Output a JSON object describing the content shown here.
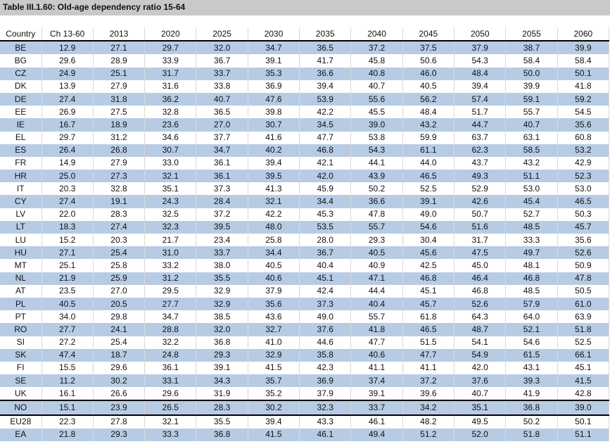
{
  "title": "Table III.1.60: Old-age dependency ratio 15-64",
  "columns": [
    "Country",
    "Ch 13-60",
    "2013",
    "2020",
    "2025",
    "2030",
    "2035",
    "2040",
    "2045",
    "2050",
    "2055",
    "2060"
  ],
  "rows": [
    [
      "BE",
      "12.9",
      "27.1",
      "29.7",
      "32.0",
      "34.7",
      "36.5",
      "37.2",
      "37.5",
      "37.9",
      "38.7",
      "39.9"
    ],
    [
      "BG",
      "29.6",
      "28.9",
      "33.9",
      "36.7",
      "39.1",
      "41.7",
      "45.8",
      "50.6",
      "54.3",
      "58.4",
      "58.4"
    ],
    [
      "CZ",
      "24.9",
      "25.1",
      "31.7",
      "33.7",
      "35.3",
      "36.6",
      "40.8",
      "46.0",
      "48.4",
      "50.0",
      "50.1"
    ],
    [
      "DK",
      "13.9",
      "27.9",
      "31.6",
      "33.8",
      "36.9",
      "39.4",
      "40.7",
      "40.5",
      "39.4",
      "39.9",
      "41.8"
    ],
    [
      "DE",
      "27.4",
      "31.8",
      "36.2",
      "40.7",
      "47.6",
      "53.9",
      "55.6",
      "56.2",
      "57.4",
      "59.1",
      "59.2"
    ],
    [
      "EE",
      "26.9",
      "27.5",
      "32.8",
      "36.5",
      "39.8",
      "42.2",
      "45.5",
      "48.4",
      "51.7",
      "55.7",
      "54.5"
    ],
    [
      "IE",
      "16.7",
      "18.9",
      "23.6",
      "27.0",
      "30.7",
      "34.5",
      "39.0",
      "43.2",
      "44.7",
      "40.7",
      "35.6"
    ],
    [
      "EL",
      "29.7",
      "31.2",
      "34.6",
      "37.7",
      "41.6",
      "47.7",
      "53.8",
      "59.9",
      "63.7",
      "63.1",
      "60.8"
    ],
    [
      "ES",
      "26.4",
      "26.8",
      "30.7",
      "34.7",
      "40.2",
      "46.8",
      "54.3",
      "61.1",
      "62.3",
      "58.5",
      "53.2"
    ],
    [
      "FR",
      "14.9",
      "27.9",
      "33.0",
      "36.1",
      "39.4",
      "42.1",
      "44.1",
      "44.0",
      "43.7",
      "43.2",
      "42.9"
    ],
    [
      "HR",
      "25.0",
      "27.3",
      "32.1",
      "36.1",
      "39.5",
      "42.0",
      "43.9",
      "46.5",
      "49.3",
      "51.1",
      "52.3"
    ],
    [
      "IT",
      "20.3",
      "32.8",
      "35.1",
      "37.3",
      "41.3",
      "45.9",
      "50.2",
      "52.5",
      "52.9",
      "53.0",
      "53.0"
    ],
    [
      "CY",
      "27.4",
      "19.1",
      "24.3",
      "28.4",
      "32.1",
      "34.4",
      "36.6",
      "39.1",
      "42.6",
      "45.4",
      "46.5"
    ],
    [
      "LV",
      "22.0",
      "28.3",
      "32.5",
      "37.2",
      "42.2",
      "45.3",
      "47.8",
      "49.0",
      "50.7",
      "52.7",
      "50.3"
    ],
    [
      "LT",
      "18.3",
      "27.4",
      "32.3",
      "39.5",
      "48.0",
      "53.5",
      "55.7",
      "54.6",
      "51.6",
      "48.5",
      "45.7"
    ],
    [
      "LU",
      "15.2",
      "20.3",
      "21.7",
      "23.4",
      "25.8",
      "28.0",
      "29.3",
      "30.4",
      "31.7",
      "33.3",
      "35.6"
    ],
    [
      "HU",
      "27.1",
      "25.4",
      "31.0",
      "33.7",
      "34.4",
      "36.7",
      "40.5",
      "45.6",
      "47.5",
      "49.7",
      "52.6"
    ],
    [
      "MT",
      "25.1",
      "25.8",
      "33.2",
      "38.0",
      "40.5",
      "40.4",
      "40.9",
      "42.5",
      "45.0",
      "48.1",
      "50.9"
    ],
    [
      "NL",
      "21.9",
      "25.9",
      "31.2",
      "35.5",
      "40.6",
      "45.1",
      "47.1",
      "46.8",
      "46.4",
      "46.8",
      "47.8"
    ],
    [
      "AT",
      "23.5",
      "27.0",
      "29.5",
      "32.9",
      "37.9",
      "42.4",
      "44.4",
      "45.1",
      "46.8",
      "48.5",
      "50.5"
    ],
    [
      "PL",
      "40.5",
      "20.5",
      "27.7",
      "32.9",
      "35.6",
      "37.3",
      "40.4",
      "45.7",
      "52.6",
      "57.9",
      "61.0"
    ],
    [
      "PT",
      "34.0",
      "29.8",
      "34.7",
      "38.5",
      "43.6",
      "49.0",
      "55.7",
      "61.8",
      "64.3",
      "64.0",
      "63.9"
    ],
    [
      "RO",
      "27.7",
      "24.1",
      "28.8",
      "32.0",
      "32.7",
      "37.6",
      "41.8",
      "46.5",
      "48.7",
      "52.1",
      "51.8"
    ],
    [
      "SI",
      "27.2",
      "25.4",
      "32.2",
      "36.8",
      "41.0",
      "44.6",
      "47.7",
      "51.5",
      "54.1",
      "54.6",
      "52.5"
    ],
    [
      "SK",
      "47.4",
      "18.7",
      "24.8",
      "29.3",
      "32.9",
      "35.8",
      "40.6",
      "47.7",
      "54.9",
      "61.5",
      "66.1"
    ],
    [
      "FI",
      "15.5",
      "29.6",
      "36.1",
      "39.1",
      "41.5",
      "42.3",
      "41.1",
      "41.1",
      "42.0",
      "43.1",
      "45.1"
    ],
    [
      "SE",
      "11.2",
      "30.2",
      "33.1",
      "34.3",
      "35.7",
      "36.9",
      "37.4",
      "37.2",
      "37.6",
      "39.3",
      "41.5"
    ],
    [
      "UK",
      "16.1",
      "26.6",
      "29.6",
      "31.9",
      "35.2",
      "37.9",
      "39.1",
      "39.6",
      "40.7",
      "41.9",
      "42.8"
    ],
    [
      "NO",
      "15.1",
      "23.9",
      "26.5",
      "28.3",
      "30.2",
      "32.3",
      "33.7",
      "34.2",
      "35.1",
      "36.8",
      "39.0"
    ],
    [
      "EU28",
      "22.3",
      "27.8",
      "32.1",
      "35.5",
      "39.4",
      "43.3",
      "46.1",
      "48.2",
      "49.5",
      "50.2",
      "50.1"
    ],
    [
      "EA",
      "21.8",
      "29.3",
      "33.3",
      "36.8",
      "41.5",
      "46.1",
      "49.4",
      "51.2",
      "52.0",
      "51.8",
      "51.1"
    ]
  ]
}
